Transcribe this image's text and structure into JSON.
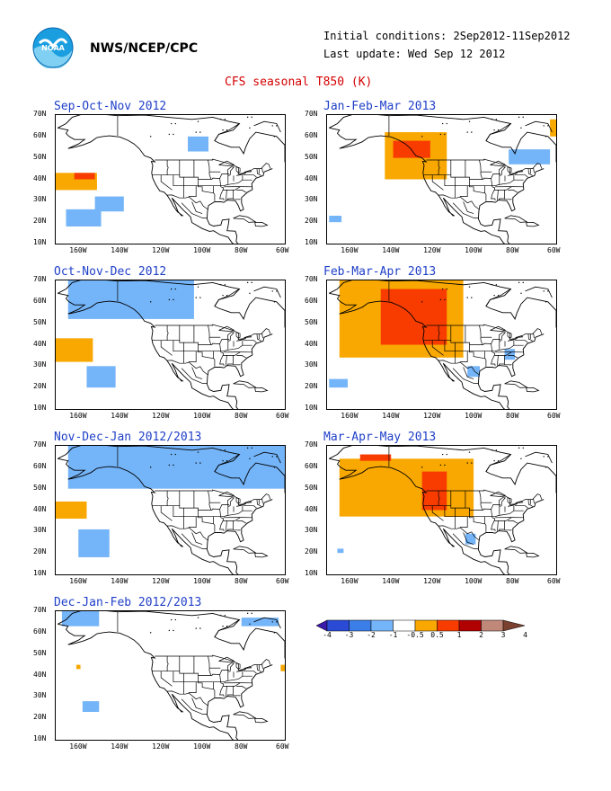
{
  "header": {
    "org": "NWS/NCEP/CPC",
    "initial_conditions": "Initial conditions: 2Sep2012-11Sep2012",
    "last_update": "Last update: Wed Sep 12 2012",
    "title": "CFS seasonal T850 (K)"
  },
  "axes": {
    "lat_labels": [
      "70N",
      "60N",
      "50N",
      "40N",
      "30N",
      "20N",
      "10N"
    ],
    "lon_labels": [
      "160W",
      "140W",
      "120W",
      "100W",
      "80W",
      "60W"
    ]
  },
  "colors": {
    "lblue": "#74b4f8",
    "orange": "#f8a800",
    "red": "#f83c00",
    "land": "#000000"
  },
  "colorbar": {
    "labels": [
      "-4",
      "-3",
      "-2",
      "-1",
      "-0.5",
      "0.5",
      "1",
      "2",
      "3",
      "4"
    ],
    "colors": [
      "#3a1aa8",
      "#2b4ad6",
      "#3b7ee8",
      "#74b4f8",
      "#ffffff",
      "#f8a800",
      "#f83c00",
      "#b00000",
      "#c08878",
      "#7a4030"
    ]
  },
  "panels": [
    {
      "title": "Sep-Oct-Nov 2012",
      "anomalies": [
        {
          "level": "orange",
          "box": [
            -171,
            -151,
            35,
            43
          ]
        },
        {
          "level": "red",
          "box": [
            -162,
            -152,
            40,
            43
          ]
        },
        {
          "level": "lblue",
          "box": [
            -107,
            -97,
            53,
            60
          ]
        },
        {
          "level": "lblue",
          "box": [
            -166,
            -149,
            18,
            26
          ]
        },
        {
          "level": "lblue",
          "box": [
            -152,
            -138,
            25,
            32
          ]
        }
      ]
    },
    {
      "title": "Jan-Feb-Mar 2013",
      "anomalies": [
        {
          "level": "orange",
          "box": [
            -143,
            -113,
            40,
            62
          ]
        },
        {
          "level": "red",
          "box": [
            -139,
            -121,
            50,
            58
          ]
        },
        {
          "level": "lblue",
          "box": [
            -83,
            -63,
            47,
            54
          ]
        },
        {
          "level": "lblue",
          "box": [
            -170,
            -164,
            20,
            23
          ]
        },
        {
          "level": "orange",
          "box": [
            -63,
            -60,
            60,
            68
          ]
        }
      ]
    },
    {
      "title": "Oct-Nov-Dec 2012",
      "anomalies": [
        {
          "level": "lblue",
          "box": [
            -165,
            -104,
            52,
            70
          ]
        },
        {
          "level": "orange",
          "box": [
            -171,
            -153,
            32,
            43
          ]
        },
        {
          "level": "lblue",
          "box": [
            -156,
            -142,
            20,
            30
          ]
        }
      ]
    },
    {
      "title": "Feb-Mar-Apr 2013",
      "anomalies": [
        {
          "level": "orange",
          "box": [
            -165,
            -105,
            34,
            70
          ]
        },
        {
          "level": "red",
          "box": [
            -145,
            -113,
            40,
            66
          ]
        },
        {
          "level": "lblue",
          "box": [
            -170,
            -161,
            20,
            24
          ]
        },
        {
          "level": "lblue",
          "box": [
            -103,
            -97,
            25,
            30
          ]
        },
        {
          "level": "lblue",
          "box": [
            -85,
            -80,
            33,
            38
          ]
        }
      ]
    },
    {
      "title": "Nov-Dec-Jan 2012/2013",
      "anomalies": [
        {
          "level": "lblue",
          "box": [
            -165,
            -60,
            50,
            70
          ]
        },
        {
          "level": "orange",
          "box": [
            -171,
            -156,
            36,
            44
          ]
        },
        {
          "level": "lblue",
          "box": [
            -160,
            -145,
            18,
            31
          ]
        }
      ]
    },
    {
      "title": "Mar-Apr-May 2013",
      "anomalies": [
        {
          "level": "orange",
          "box": [
            -165,
            -100,
            37,
            64
          ]
        },
        {
          "level": "red",
          "box": [
            -125,
            -113,
            40,
            58
          ]
        },
        {
          "level": "red",
          "box": [
            -155,
            -140,
            63,
            66
          ]
        },
        {
          "level": "lblue",
          "box": [
            -104,
            -99,
            24,
            29
          ]
        },
        {
          "level": "lblue",
          "box": [
            -166,
            -163,
            20,
            22
          ]
        }
      ]
    },
    {
      "title": "Dec-Jan-Feb 2012/2013",
      "anomalies": [
        {
          "level": "lblue",
          "box": [
            -168,
            -150,
            63,
            70
          ]
        },
        {
          "level": "lblue",
          "box": [
            -81,
            -63,
            63,
            67
          ]
        },
        {
          "level": "lblue",
          "box": [
            -158,
            -150,
            23,
            28
          ]
        },
        {
          "level": "orange",
          "box": [
            -161,
            -159,
            43,
            45
          ]
        },
        {
          "level": "orange",
          "box": [
            -62,
            -60,
            42,
            45
          ]
        }
      ]
    }
  ]
}
